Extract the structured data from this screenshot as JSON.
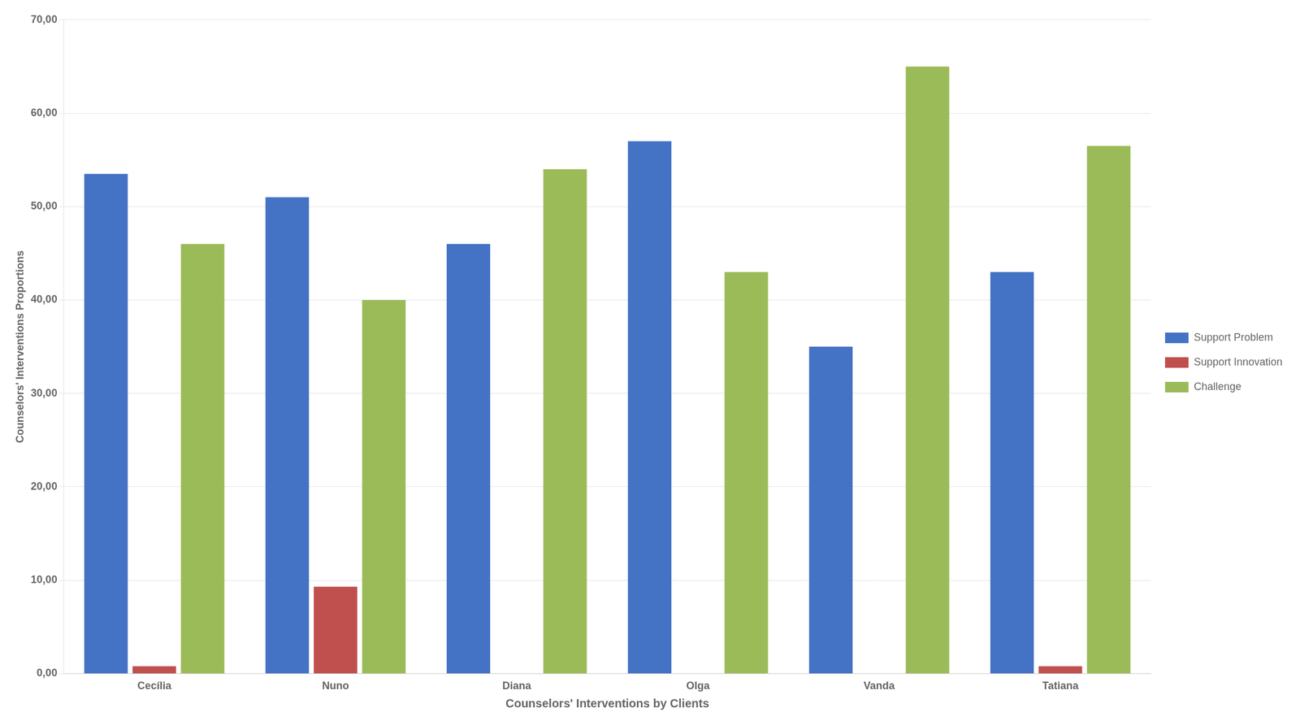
{
  "chart_data": {
    "type": "bar",
    "xlabel": "Counselors' Interventions by Clients",
    "ylabel": "Counselors' Interventions Proportions",
    "categories": [
      "Cecília",
      "Nuno",
      "Diana",
      "Olga",
      "Vanda",
      "Tatiana"
    ],
    "series": [
      {
        "name": "Support Problem",
        "color": "#4472C4",
        "values": [
          53.5,
          51.0,
          46.0,
          57.0,
          35.0,
          43.0
        ]
      },
      {
        "name": "Support Innovation",
        "color": "#C0504D",
        "values": [
          0.8,
          9.3,
          0.0,
          0.0,
          0.0,
          0.8
        ]
      },
      {
        "name": "Challenge",
        "color": "#9BBB59",
        "values": [
          46.0,
          40.0,
          54.0,
          43.0,
          65.0,
          56.5
        ]
      }
    ],
    "ylim": [
      0,
      70
    ],
    "yticks": [
      {
        "value": 0,
        "label": "0,00"
      },
      {
        "value": 10,
        "label": "10,00"
      },
      {
        "value": 20,
        "label": "20,00"
      },
      {
        "value": 30,
        "label": "30,00"
      },
      {
        "value": 40,
        "label": "40,00"
      },
      {
        "value": 50,
        "label": "50,00"
      },
      {
        "value": 60,
        "label": "60,00"
      },
      {
        "value": 70,
        "label": "70,00"
      }
    ],
    "grid": true,
    "legend": "right"
  }
}
